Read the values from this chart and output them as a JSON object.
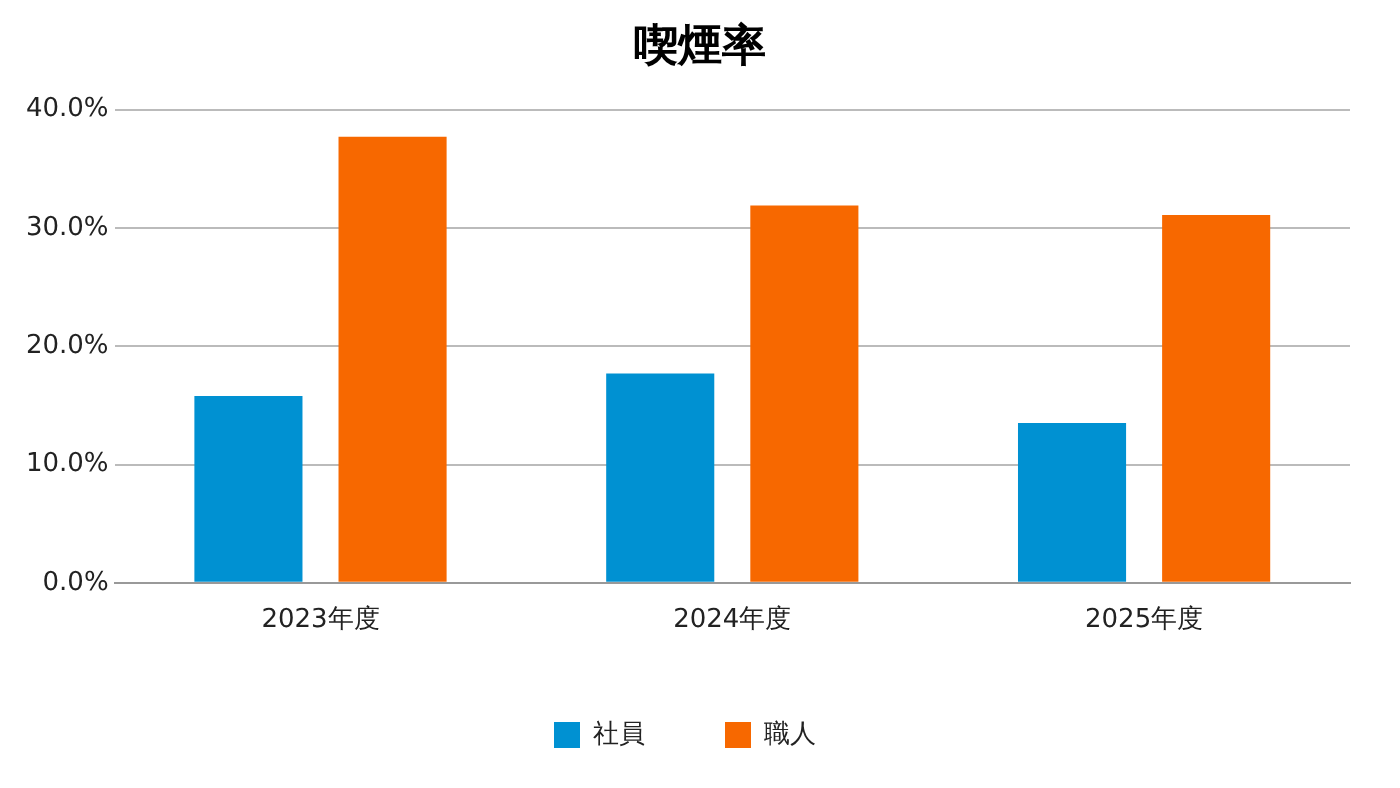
{
  "chart_data": {
    "type": "bar",
    "title": "喫煙率",
    "categories": [
      "2023年度",
      "2024年度",
      "2025年度"
    ],
    "series": [
      {
        "name": "社員",
        "color": "#0091d2",
        "values": [
          15.8,
          17.7,
          13.5
        ]
      },
      {
        "name": "職人",
        "color": "#f76800",
        "values": [
          37.7,
          31.9,
          31.1
        ]
      }
    ],
    "ylim": [
      0,
      40
    ],
    "yticks": [
      {
        "value": 0,
        "label": "0.0%"
      },
      {
        "value": 10,
        "label": "10.0%"
      },
      {
        "value": 20,
        "label": "20.0%"
      },
      {
        "value": 30,
        "label": "30.0%"
      },
      {
        "value": 40,
        "label": "40.0%"
      }
    ],
    "grid": "y",
    "legend": "bottom"
  }
}
